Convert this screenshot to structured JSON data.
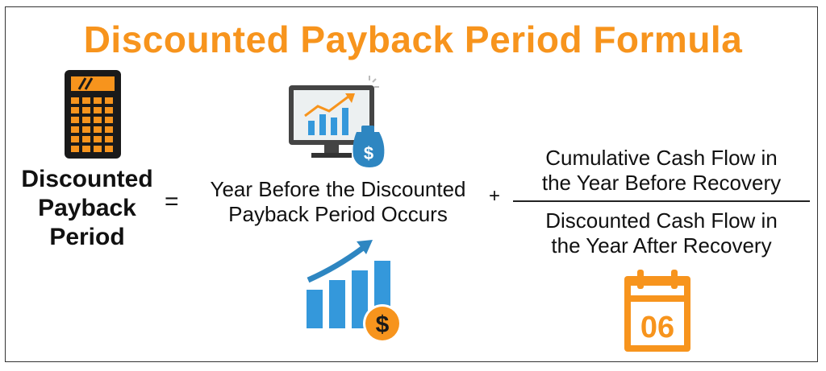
{
  "title": "Discounted Payback Period Formula",
  "lhs": {
    "line1": "Discounted",
    "line2": "Payback",
    "line3": "Period"
  },
  "operators": {
    "equals": "=",
    "plus": "+"
  },
  "term1": {
    "line1": "Year Before the Discounted",
    "line2": "Payback Period Occurs"
  },
  "fraction": {
    "numerator_line1": "Cumulative Cash Flow in",
    "numerator_line2": "the Year Before Recovery",
    "denominator_line1": "Discounted Cash Flow in",
    "denominator_line2": "the Year After Recovery"
  },
  "icons": {
    "calculator": "calculator-icon",
    "monitor": "monitor-chart-icon",
    "money_bag": "money-bag-icon",
    "growth": "growth-chart-icon",
    "coin": "dollar-coin-icon",
    "calendar": "calendar-icon",
    "calendar_date": "06",
    "dollar_sign": "$"
  },
  "colors": {
    "accent": "#f7941d",
    "blue": "#3498db",
    "dark": "#222222"
  }
}
